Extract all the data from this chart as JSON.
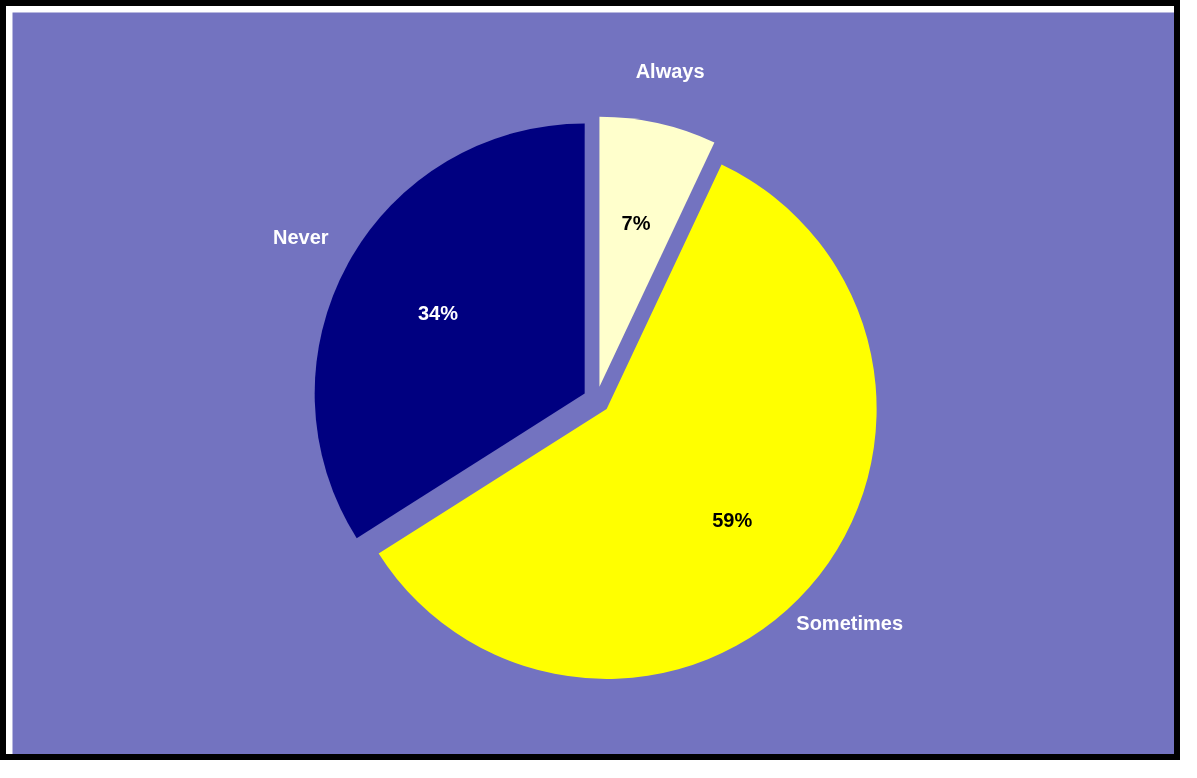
{
  "chart_data": {
    "type": "pie",
    "categories": [
      "Always",
      "Sometimes",
      "Never"
    ],
    "values": [
      7,
      59,
      34
    ],
    "colors": [
      "#ffffcc",
      "#ffff00",
      "#000080"
    ],
    "value_labels": [
      "7%",
      "59%",
      "34%"
    ]
  }
}
